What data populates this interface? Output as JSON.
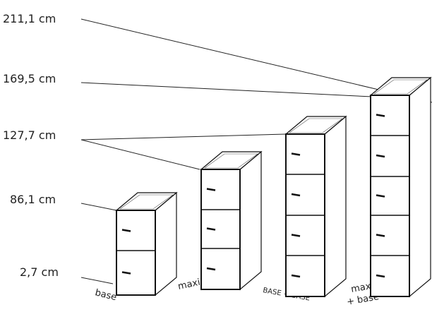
{
  "levels": [
    "211,1 cm",
    "169,5 cm",
    "127,7 cm",
    "86,1 cm",
    "2,7 cm"
  ],
  "cabinets": [
    {
      "label": "base"
    },
    {
      "label": "maxi ridotto*"
    },
    {
      "label": "BASE + BASE"
    },
    {
      "label": "maxi ridotto",
      "label2": "+ base **"
    }
  ]
}
